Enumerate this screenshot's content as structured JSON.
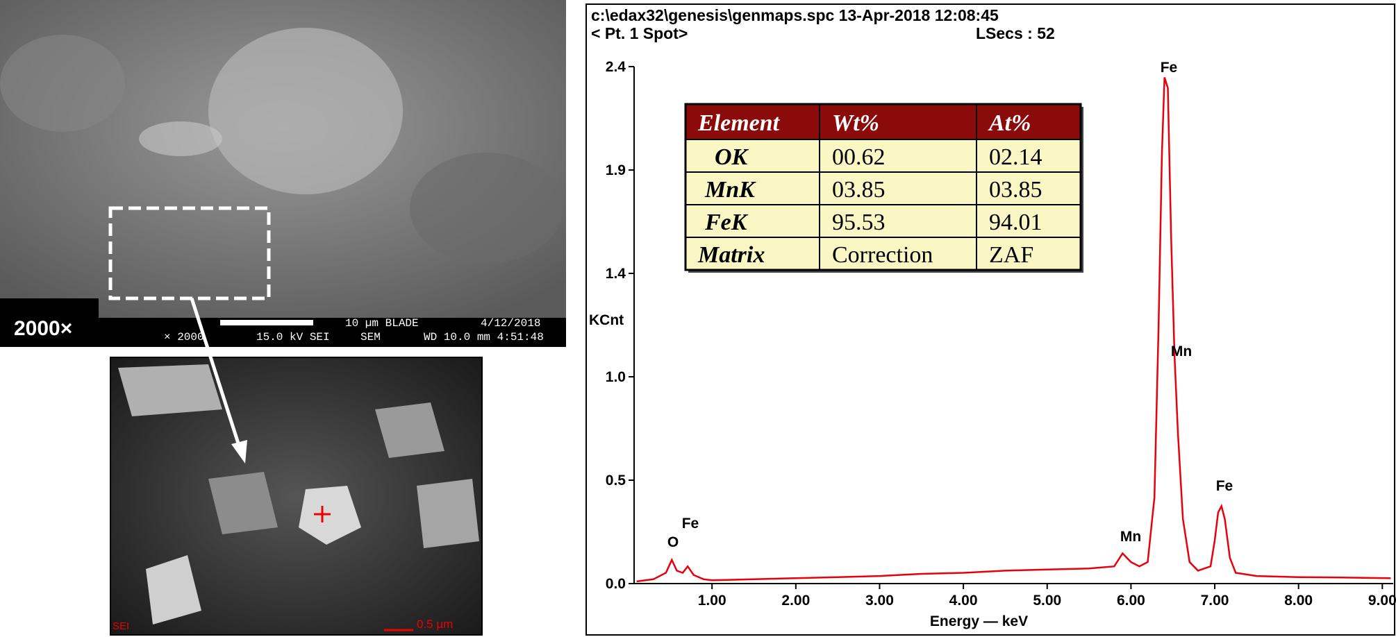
{
  "sem": {
    "magnification": "2000×",
    "bar_texts": [
      "10 µm  BLADE",
      "4/12/2018",
      "× 2000",
      "15.0 kV SEI",
      "SEM",
      "WD 10.0 mm 4:51:48"
    ],
    "inset_texts": [
      "SEI",
      "0.5 µm"
    ]
  },
  "header": {
    "file": "c:\\edax32\\genesis\\genmaps.spc  13-Apr-2018 12:08:45",
    "spot": "< Pt. 1 Spot>",
    "lsecs": "LSecs : 52"
  },
  "table": {
    "header": [
      "Element",
      "Wt%",
      "At%"
    ],
    "rows": [
      [
        "OK",
        "00.62",
        "02.14"
      ],
      [
        "MnK",
        "03.85",
        "03.85"
      ],
      [
        "FeK",
        "95.53",
        "94.01"
      ],
      [
        "Matrix",
        "Correction",
        "ZAF"
      ]
    ]
  },
  "chart_data": {
    "type": "line",
    "xlabel": "Energy — keV",
    "ylabel": "KCnt",
    "color": "#e8000b",
    "x": [
      0.1,
      0.3,
      0.45,
      0.52,
      0.58,
      0.65,
      0.71,
      0.78,
      0.9,
      1.0,
      1.5,
      2.0,
      2.5,
      3.0,
      3.5,
      4.0,
      4.5,
      5.0,
      5.5,
      5.8,
      5.9,
      6.0,
      6.1,
      6.2,
      6.28,
      6.33,
      6.37,
      6.4,
      6.44,
      6.48,
      6.52,
      6.56,
      6.62,
      6.7,
      6.8,
      6.95,
      7.0,
      7.04,
      7.08,
      7.12,
      7.18,
      7.25,
      7.5,
      8.0,
      8.5,
      9.1
    ],
    "values": [
      0.01,
      0.02,
      0.05,
      0.11,
      0.06,
      0.05,
      0.08,
      0.04,
      0.02,
      0.015,
      0.02,
      0.025,
      0.03,
      0.035,
      0.045,
      0.05,
      0.06,
      0.065,
      0.07,
      0.08,
      0.14,
      0.1,
      0.08,
      0.1,
      0.4,
      1.2,
      2.0,
      2.35,
      2.3,
      1.6,
      1.06,
      0.7,
      0.3,
      0.1,
      0.06,
      0.08,
      0.2,
      0.33,
      0.36,
      0.3,
      0.12,
      0.05,
      0.035,
      0.03,
      0.028,
      0.025
    ],
    "xlim": [
      0.07,
      9.13
    ],
    "ylim": [
      0,
      2.4
    ],
    "xticks": [
      {
        "value": 1,
        "label": "1.00"
      },
      {
        "value": 2,
        "label": "2.00"
      },
      {
        "value": 3,
        "label": "3.00"
      },
      {
        "value": 4,
        "label": "4.00"
      },
      {
        "value": 5,
        "label": "5.00"
      },
      {
        "value": 6,
        "label": "6.00"
      },
      {
        "value": 7,
        "label": "7.00"
      },
      {
        "value": 8,
        "label": "8.00"
      },
      {
        "value": 9,
        "label": "9.00"
      }
    ],
    "yticks": [
      {
        "value": 0,
        "label": "0.0"
      },
      {
        "value": 0.48,
        "label": "0.5"
      },
      {
        "value": 0.96,
        "label": "1.0"
      },
      {
        "value": 1.44,
        "label": "1.4"
      },
      {
        "value": 1.92,
        "label": "1.9"
      },
      2.4
    ],
    "peak_labels": [
      "O",
      "Fe",
      "Mn",
      "Fe",
      "Mn",
      "Fe"
    ]
  }
}
